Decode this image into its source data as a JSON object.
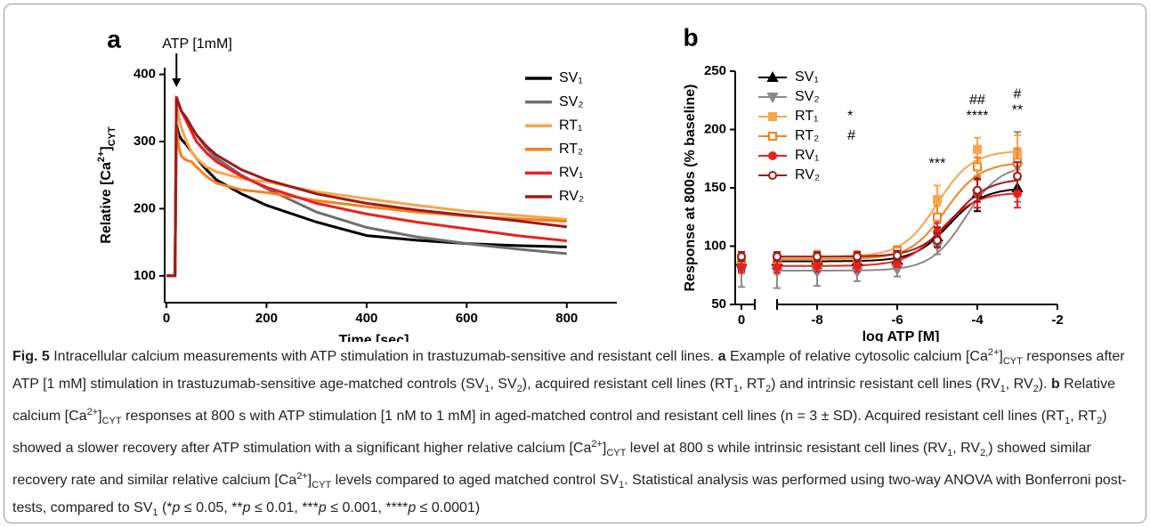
{
  "chart_data": [
    {
      "type": "line",
      "panel": "a",
      "annotation": "ATP [1mM]",
      "annotation_x": 20,
      "xlabel": "Time [sec]",
      "ylabel": [
        {
          "text": "Relative [Ca"
        },
        {
          "text": "2+",
          "style": "sup"
        },
        {
          "text": "]"
        },
        {
          "text": "CYT",
          "style": "sub"
        }
      ],
      "x": [
        0,
        17,
        20,
        25,
        30,
        40,
        50,
        60,
        80,
        100,
        150,
        200,
        300,
        400,
        500,
        600,
        700,
        800
      ],
      "xlim": [
        0,
        900
      ],
      "xticks": [
        0,
        200,
        400,
        600,
        800
      ],
      "ylim": [
        60,
        410
      ],
      "yticks": [
        100,
        200,
        300,
        400
      ],
      "series": [
        {
          "name": "SV₁",
          "color": "#000000",
          "values": [
            100,
            100,
            325,
            310,
            303,
            295,
            285,
            275,
            258,
            243,
            222,
            205,
            180,
            160,
            153,
            148,
            145,
            143
          ]
        },
        {
          "name": "SV₂",
          "color": "#6e6e6e",
          "values": [
            100,
            100,
            362,
            355,
            345,
            335,
            322,
            310,
            290,
            275,
            250,
            230,
            195,
            172,
            158,
            148,
            140,
            133
          ]
        },
        {
          "name": "RT₁",
          "color": "#f7a54f",
          "values": [
            100,
            100,
            355,
            335,
            320,
            300,
            285,
            275,
            262,
            255,
            245,
            240,
            225,
            215,
            205,
            196,
            190,
            184
          ]
        },
        {
          "name": "RT₂",
          "color": "#f28222",
          "values": [
            100,
            100,
            322,
            290,
            278,
            272,
            270,
            262,
            248,
            238,
            228,
            224,
            212,
            203,
            195,
            189,
            185,
            181
          ]
        },
        {
          "name": "RV₁",
          "color": "#e8211f",
          "values": [
            100,
            100,
            367,
            355,
            345,
            330,
            315,
            300,
            283,
            270,
            248,
            232,
            208,
            192,
            180,
            170,
            160,
            152
          ]
        },
        {
          "name": "RV₂",
          "color": "#9e1a1a",
          "values": [
            100,
            100,
            365,
            355,
            345,
            335,
            322,
            310,
            293,
            280,
            258,
            243,
            222,
            208,
            198,
            190,
            182,
            173
          ]
        }
      ]
    },
    {
      "type": "scatter",
      "panel": "b",
      "xlabel": "log ATP [M]",
      "ylabel": "Response at 800s (% baseline)",
      "x": [
        0,
        -9,
        -8,
        -7,
        -6,
        -5,
        -4,
        -3
      ],
      "xlim": [
        -9,
        -2
      ],
      "xticks": [
        0,
        -8,
        -6,
        -4,
        -2
      ],
      "ylim": [
        50,
        250
      ],
      "yticks": [
        50,
        100,
        150,
        200,
        250
      ],
      "stats": [
        {
          "x": -5,
          "lines": [
            "***"
          ]
        },
        {
          "x": -4,
          "lines": [
            "##",
            "****"
          ]
        },
        {
          "x": -3,
          "lines": [
            "#",
            "**"
          ]
        }
      ],
      "series": [
        {
          "name": "SV₁",
          "color": "#000000",
          "marker": "triangle",
          "filled": true,
          "values": [
            87,
            87,
            88,
            87,
            88,
            108,
            145,
            150
          ],
          "errors": [
            8,
            6,
            8,
            7,
            6,
            8,
            15,
            12
          ],
          "fit": {
            "bottom": 87,
            "top": 150,
            "log_ec50": -4.7
          }
        },
        {
          "name": "SV₂",
          "color": "#8a8a8a",
          "marker": "triangle-down",
          "filled": true,
          "values": [
            80,
            78,
            78,
            78,
            80,
            100,
            145,
            168
          ],
          "errors": [
            15,
            14,
            12,
            8,
            6,
            7,
            12,
            30
          ],
          "fit": {
            "bottom": 79,
            "top": 170,
            "log_ec50": -4.3
          }
        },
        {
          "name": "RT₁",
          "color": "#f7a54f",
          "marker": "square",
          "filled": true,
          "legend_note": "*",
          "values": [
            90,
            90,
            91,
            91,
            96,
            140,
            183,
            180
          ],
          "errors": [
            5,
            4,
            5,
            5,
            4,
            12,
            10,
            15
          ],
          "fit": {
            "bottom": 91,
            "top": 182,
            "log_ec50": -5.0
          }
        },
        {
          "name": "RT₂",
          "color": "#f28222",
          "marker": "square",
          "filled": false,
          "legend_note": "#",
          "values": [
            88,
            88,
            89,
            89,
            96,
            125,
            168,
            172
          ],
          "errors": [
            4,
            4,
            4,
            4,
            4,
            10,
            8,
            12
          ],
          "fit": {
            "bottom": 89,
            "top": 172,
            "log_ec50": -4.8
          }
        },
        {
          "name": "RV₁",
          "color": "#e8211f",
          "marker": "circle",
          "filled": true,
          "values": [
            82,
            82,
            83,
            83,
            86,
            112,
            145,
            145
          ],
          "errors": [
            5,
            5,
            5,
            5,
            4,
            8,
            12,
            12
          ],
          "fit": {
            "bottom": 83,
            "top": 146,
            "log_ec50": -4.9
          }
        },
        {
          "name": "RV₂",
          "color": "#9e1a1a",
          "marker": "circle",
          "filled": false,
          "values": [
            91,
            91,
            91,
            91,
            92,
            105,
            148,
            160
          ],
          "errors": [
            4,
            4,
            4,
            4,
            4,
            6,
            10,
            12
          ],
          "fit": {
            "bottom": 91,
            "top": 158,
            "log_ec50": -4.6
          }
        }
      ]
    }
  ],
  "caption": [
    {
      "text": "Fig. 5",
      "style": "b"
    },
    {
      "text": "  Intracellular calcium measurements with ATP stimulation in trastuzumab-sensitive and resistant cell lines. "
    },
    {
      "text": "a",
      "style": "b"
    },
    {
      "text": " Example of relative cytosolic calcium [Ca"
    },
    {
      "text": "2+",
      "style": "sup"
    },
    {
      "text": "]"
    },
    {
      "text": "CYT",
      "style": "sub"
    },
    {
      "text": " responses after ATP [1 mM] stimulation in trastuzumab-sensitive age-matched controls (SV"
    },
    {
      "text": "1",
      "style": "sub"
    },
    {
      "text": ", SV"
    },
    {
      "text": "2",
      "style": "sub"
    },
    {
      "text": "), acquired resistant cell lines (RT"
    },
    {
      "text": "1",
      "style": "sub"
    },
    {
      "text": ", RT"
    },
    {
      "text": "2",
      "style": "sub"
    },
    {
      "text": ") and intrinsic resistant cell lines (RV"
    },
    {
      "text": "1",
      "style": "sub"
    },
    {
      "text": ", RV"
    },
    {
      "text": "2",
      "style": "sub"
    },
    {
      "text": "). "
    },
    {
      "text": "b",
      "style": "b"
    },
    {
      "text": " Relative calcium [Ca"
    },
    {
      "text": "2+",
      "style": "sup"
    },
    {
      "text": "]"
    },
    {
      "text": "CYT",
      "style": "sub"
    },
    {
      "text": " responses at 800 s with ATP stimulation [1 nM to 1 mM] in aged-matched control and resistant cell lines (n = 3 ± SD). Acquired resistant cell lines (RT"
    },
    {
      "text": "1",
      "style": "sub"
    },
    {
      "text": ", RT"
    },
    {
      "text": "2",
      "style": "sub"
    },
    {
      "text": ") showed a slower recovery after ATP stimulation with a significant higher relative calcium [Ca"
    },
    {
      "text": "2+",
      "style": "sup"
    },
    {
      "text": "]"
    },
    {
      "text": "CYT",
      "style": "sub"
    },
    {
      "text": " level at 800 s while intrinsic resistant cell lines (RV"
    },
    {
      "text": "1",
      "style": "sub"
    },
    {
      "text": ", RV"
    },
    {
      "text": "2,",
      "style": "sub"
    },
    {
      "text": ") showed similar recovery rate and similar relative calcium [Ca"
    },
    {
      "text": "2+",
      "style": "sup"
    },
    {
      "text": "]"
    },
    {
      "text": "CYT",
      "style": "sub"
    },
    {
      "text": " levels compared to aged matched control SV"
    },
    {
      "text": "1",
      "style": "sub"
    },
    {
      "text": ". Statistical analysis was performed using two-way ANOVA with Bonferroni post-tests, compared to SV"
    },
    {
      "text": "1",
      "style": "sub"
    },
    {
      "text": " (*"
    },
    {
      "text": "p",
      "style": "i"
    },
    {
      "text": " ≤ 0.05, **"
    },
    {
      "text": "p",
      "style": "i"
    },
    {
      "text": " ≤ 0.01, ***"
    },
    {
      "text": "p",
      "style": "i"
    },
    {
      "text": " ≤ 0.001, ****"
    },
    {
      "text": "p",
      "style": "i"
    },
    {
      "text": " ≤ 0.0001)"
    }
  ]
}
